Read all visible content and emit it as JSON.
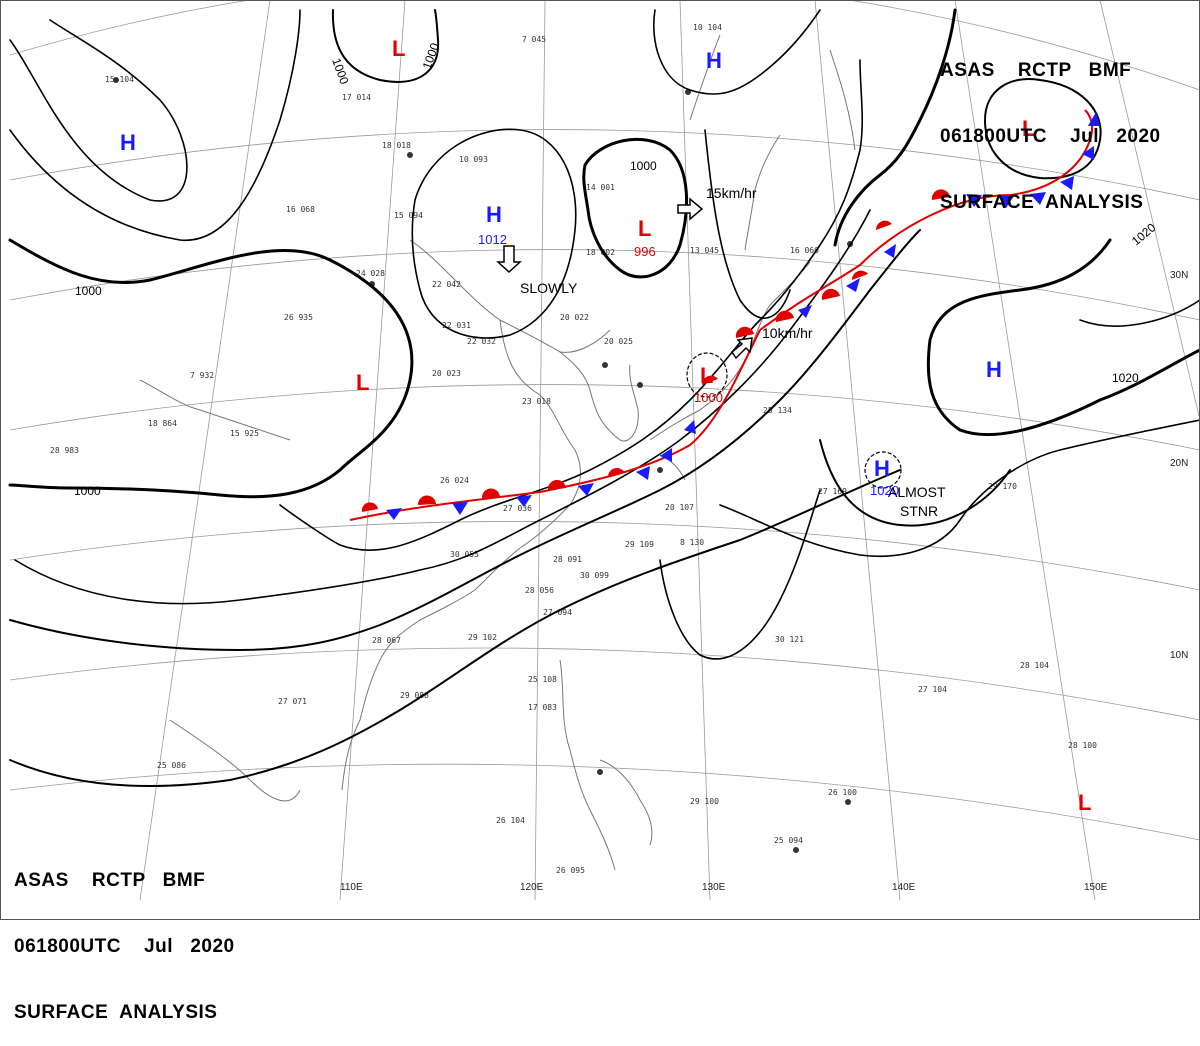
{
  "header": {
    "line1": "ASAS    RCTP   BMF",
    "line2": "061800UTC    Jul   2020",
    "line3": "SURFACE  ANALYSIS"
  },
  "colors": {
    "high": "#1a1aff",
    "low": "#e00000",
    "warm_front": "#e00000",
    "cold_front": "#1a1aff",
    "isobar": "#000000",
    "coast": "#777777",
    "grid": "#9a9a9a"
  },
  "systems": {
    "high_nw": {
      "symbol": "H"
    },
    "high_c": {
      "symbol": "H",
      "pressure": "1012"
    },
    "high_ne": {
      "symbol": "H"
    },
    "high_e": {
      "symbol": "H"
    },
    "high_se": {
      "symbol": "H",
      "pressure": "1020"
    },
    "low_top": {
      "symbol": "L"
    },
    "low_c": {
      "symbol": "L",
      "pressure": "996"
    },
    "low_front": {
      "symbol": "L",
      "pressure": "1000"
    },
    "low_w": {
      "symbol": "L"
    },
    "low_ne": {
      "symbol": "L"
    },
    "low_se": {
      "symbol": "L"
    }
  },
  "motions": {
    "slowly": "SLOWLY",
    "speed_15": "15km/hr",
    "speed_10": "10km/hr",
    "almost": "ALMOST",
    "stnr": "STNR"
  },
  "isobar_labels": {
    "a": "1000",
    "b": "1000",
    "c": "1000",
    "d": "1000",
    "e": "1000",
    "f": "1020",
    "g": "1020"
  },
  "grid_labels": {
    "lon": [
      "110E",
      "120E",
      "130E",
      "140E",
      "150E"
    ],
    "lat": [
      "30N",
      "20N",
      "10N"
    ]
  },
  "station_samples": [
    "15 104",
    "7 045",
    "10 104",
    "17 014",
    "18 018",
    "10 093",
    "15 094",
    "16 068",
    "24 028",
    "22 042",
    "26 935",
    "7 932",
    "20 023",
    "23 018",
    "26 024",
    "27 036",
    "30 055",
    "28 091",
    "29 102",
    "28 067",
    "29 088",
    "27 071",
    "25 108",
    "17 083",
    "25 086",
    "26 104",
    "26 095",
    "18 864",
    "15 925",
    "28 983",
    "14 001",
    "18 002",
    "13 045",
    "16 060",
    "29 109",
    "30 099",
    "27 094",
    "28 056",
    "30 121",
    "28 104",
    "27 104",
    "28 100",
    "26 100",
    "29 100",
    "25 094",
    "27 169",
    "29 170",
    "25 134",
    "20 107",
    "8 130",
    "22 031",
    "22 032",
    "20 022",
    "20 025"
  ]
}
